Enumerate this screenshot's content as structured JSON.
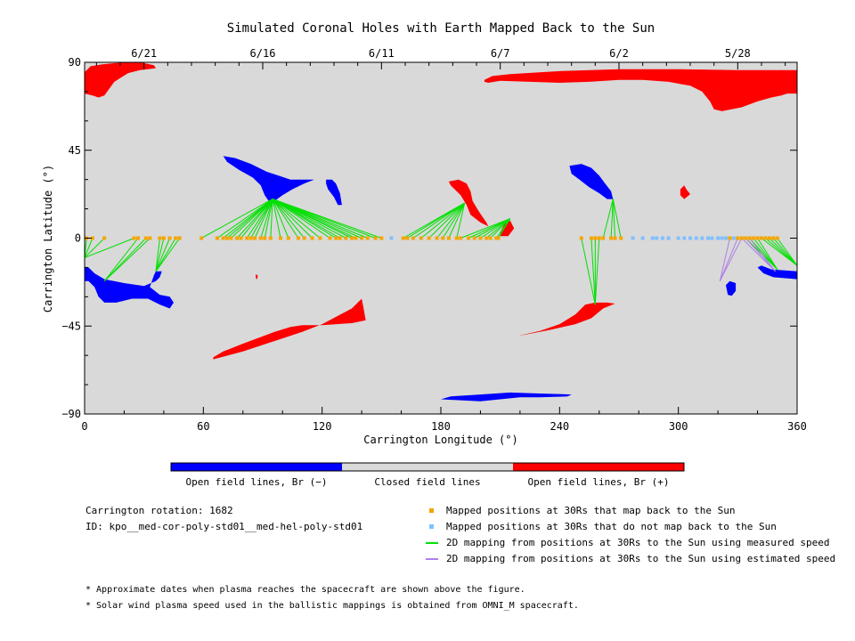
{
  "chart_data": {
    "type": "scatter",
    "title": "Simulated Coronal Holes with Earth Mapped Back to the Sun",
    "xlabel": "Carrington Longitude (°)",
    "ylabel": "Carrington Latitude (°)",
    "xlim": [
      0,
      360
    ],
    "ylim": [
      -90,
      90
    ],
    "x_ticks": [
      "0",
      "60",
      "120",
      "180",
      "240",
      "300",
      "360"
    ],
    "y_ticks": [
      "90",
      "45",
      "0",
      "−45",
      "−90"
    ],
    "top_axis": {
      "labels": [
        {
          "date": "6/21",
          "lon": 30
        },
        {
          "date": "6/16",
          "lon": 90
        },
        {
          "date": "6/11",
          "lon": 150
        },
        {
          "date": "6/7",
          "lon": 210
        },
        {
          "date": "6/2",
          "lon": 270
        },
        {
          "date": "5/28",
          "lon": 330
        }
      ]
    },
    "colors": {
      "closed": "#d9d9d9",
      "open_negative": "#0000ff",
      "open_positive": "#ff0000",
      "mapped": "#f5a500",
      "not_mapped": "#80c0ff",
      "measured_line": "#00e000",
      "estimated_line": "#b080e8"
    },
    "regions": [
      {
        "polarity": "positive",
        "points": [
          [
            0,
            85
          ],
          [
            3,
            88
          ],
          [
            9,
            89
          ],
          [
            20,
            90
          ],
          [
            28,
            90
          ],
          [
            35,
            88.5
          ],
          [
            36,
            87
          ],
          [
            28,
            86
          ],
          [
            22,
            84.5
          ],
          [
            15,
            80
          ],
          [
            10,
            73
          ],
          [
            7,
            72
          ],
          [
            4,
            73
          ],
          [
            0,
            74
          ]
        ]
      },
      {
        "polarity": "positive",
        "points": [
          [
            202,
            81
          ],
          [
            206,
            83
          ],
          [
            215,
            84
          ],
          [
            240,
            85.5
          ],
          [
            270,
            86.5
          ],
          [
            300,
            86.5
          ],
          [
            330,
            86
          ],
          [
            355,
            86
          ],
          [
            360,
            86
          ],
          [
            360,
            74
          ],
          [
            355,
            74
          ],
          [
            352,
            73
          ],
          [
            347,
            72
          ],
          [
            340,
            70
          ],
          [
            332,
            67
          ],
          [
            322,
            65
          ],
          [
            318,
            66
          ],
          [
            316,
            70
          ],
          [
            312,
            75
          ],
          [
            306,
            78
          ],
          [
            295,
            80
          ],
          [
            282,
            81
          ],
          [
            270,
            81
          ],
          [
            255,
            80
          ],
          [
            240,
            79.5
          ],
          [
            225,
            80
          ],
          [
            210,
            80.5
          ],
          [
            204,
            79.5
          ],
          [
            202,
            80
          ]
        ]
      },
      {
        "polarity": "positive",
        "points": [
          [
            65,
            -62
          ],
          [
            80,
            -58
          ],
          [
            95,
            -53
          ],
          [
            110,
            -48
          ],
          [
            120,
            -44
          ],
          [
            135,
            -36
          ],
          [
            140,
            -31
          ],
          [
            141,
            -36
          ],
          [
            142,
            -42
          ],
          [
            135,
            -43.5
          ],
          [
            120,
            -44.5
          ],
          [
            110,
            -44.5
          ],
          [
            104,
            -45.5
          ],
          [
            96,
            -48
          ],
          [
            88,
            -51
          ],
          [
            80,
            -54
          ],
          [
            70,
            -58
          ],
          [
            65,
            -61
          ]
        ]
      },
      {
        "polarity": "positive",
        "points": [
          [
            219,
            -50
          ],
          [
            230,
            -47.5
          ],
          [
            240,
            -44
          ],
          [
            248,
            -39
          ],
          [
            253,
            -34
          ],
          [
            258,
            -33
          ],
          [
            264,
            -33
          ],
          [
            268,
            -33.5
          ],
          [
            262,
            -36
          ],
          [
            256,
            -41
          ],
          [
            248,
            -44
          ],
          [
            235,
            -47
          ],
          [
            222,
            -49.5
          ]
        ]
      },
      {
        "polarity": "positive",
        "points": [
          [
            184,
            29
          ],
          [
            189,
            30
          ],
          [
            193,
            28
          ],
          [
            195,
            24
          ],
          [
            196,
            19
          ],
          [
            199,
            14
          ],
          [
            203,
            8
          ],
          [
            204,
            6
          ],
          [
            200,
            8
          ],
          [
            195,
            12
          ],
          [
            193,
            17
          ],
          [
            190,
            22
          ],
          [
            185,
            27
          ]
        ]
      },
      {
        "polarity": "positive",
        "points": [
          [
            301,
            25
          ],
          [
            303,
            27
          ],
          [
            304,
            25
          ],
          [
            306,
            22.5
          ],
          [
            303,
            20
          ],
          [
            301,
            22
          ]
        ]
      },
      {
        "polarity": "positive",
        "points": [
          [
            210,
            3
          ],
          [
            212,
            7
          ],
          [
            215,
            9
          ],
          [
            217,
            5
          ],
          [
            214,
            1
          ],
          [
            210,
            1
          ]
        ]
      },
      {
        "polarity": "positive",
        "points": [
          [
            86.5,
            -18.5
          ],
          [
            87.5,
            -19
          ],
          [
            87.2,
            -21
          ],
          [
            86.5,
            -20.5
          ]
        ]
      },
      {
        "polarity": "negative",
        "points": [
          [
            70,
            42
          ],
          [
            76,
            41
          ],
          [
            84,
            38
          ],
          [
            92,
            34
          ],
          [
            98,
            32
          ],
          [
            104,
            30
          ],
          [
            111,
            30
          ],
          [
            116,
            30
          ],
          [
            111,
            28
          ],
          [
            105,
            25
          ],
          [
            100,
            22
          ],
          [
            96,
            19
          ],
          [
            93,
            19
          ],
          [
            91,
            22
          ],
          [
            89,
            27
          ],
          [
            85,
            31
          ],
          [
            78,
            35
          ],
          [
            72,
            39
          ]
        ]
      },
      {
        "polarity": "negative",
        "points": [
          [
            122,
            30
          ],
          [
            125,
            30
          ],
          [
            127,
            28
          ],
          [
            129,
            23
          ],
          [
            130,
            17
          ],
          [
            128,
            17
          ],
          [
            126,
            21
          ],
          [
            123,
            25
          ],
          [
            122,
            28
          ]
        ]
      },
      {
        "polarity": "negative",
        "points": [
          [
            245,
            37
          ],
          [
            251,
            38
          ],
          [
            256,
            36
          ],
          [
            260,
            32
          ],
          [
            263,
            28
          ],
          [
            266,
            24
          ],
          [
            267,
            20
          ],
          [
            264,
            20
          ],
          [
            260,
            23
          ],
          [
            255,
            26
          ],
          [
            250,
            30
          ],
          [
            246,
            33
          ]
        ]
      },
      {
        "polarity": "negative",
        "points": [
          [
            0,
            -15
          ],
          [
            2,
            -15
          ],
          [
            5,
            -18
          ],
          [
            10,
            -21
          ],
          [
            20,
            -23
          ],
          [
            30,
            -24.5
          ],
          [
            36,
            -22
          ],
          [
            38,
            -20
          ],
          [
            39,
            -17
          ],
          [
            36,
            -17
          ],
          [
            35,
            -19
          ],
          [
            33,
            -25
          ],
          [
            38,
            -29
          ],
          [
            43,
            -30
          ],
          [
            45,
            -33
          ],
          [
            43,
            -36
          ],
          [
            38,
            -34
          ],
          [
            32,
            -31
          ],
          [
            24,
            -31
          ],
          [
            16,
            -33
          ],
          [
            10,
            -33
          ],
          [
            7,
            -30
          ],
          [
            5,
            -25
          ],
          [
            2,
            -22
          ],
          [
            0,
            -22
          ]
        ]
      },
      {
        "polarity": "negative",
        "points": [
          [
            326,
            -22
          ],
          [
            329,
            -23
          ],
          [
            329,
            -27
          ],
          [
            327,
            -29.5
          ],
          [
            325,
            -29
          ],
          [
            324,
            -24
          ]
        ]
      },
      {
        "polarity": "negative",
        "points": [
          [
            340,
            -15
          ],
          [
            343,
            -18
          ],
          [
            348,
            -20
          ],
          [
            354,
            -20.5
          ],
          [
            360,
            -21
          ],
          [
            360,
            -17
          ],
          [
            354,
            -16.5
          ],
          [
            347,
            -16
          ],
          [
            342,
            -14
          ]
        ]
      },
      {
        "polarity": "negative",
        "points": [
          [
            180,
            -82.5
          ],
          [
            190,
            -83
          ],
          [
            200,
            -83.5
          ],
          [
            210,
            -82.5
          ],
          [
            220,
            -81.5
          ],
          [
            230,
            -81.5
          ],
          [
            244,
            -81
          ],
          [
            246,
            -80
          ],
          [
            230,
            -79.5
          ],
          [
            215,
            -79
          ],
          [
            200,
            -80
          ],
          [
            185,
            -81
          ]
        ]
      }
    ],
    "mapped_points": [
      1,
      4,
      10,
      25,
      27,
      31,
      33,
      38,
      40,
      43,
      46,
      48,
      59,
      67,
      70,
      72,
      74,
      77,
      79,
      82,
      84,
      86,
      89,
      91,
      94,
      99,
      103,
      108,
      111,
      115,
      119,
      124,
      127,
      129,
      132,
      135,
      137,
      140,
      143,
      147,
      150,
      161,
      163,
      166,
      170,
      174,
      178,
      181,
      184,
      188,
      190,
      194,
      197,
      200,
      203,
      205,
      208,
      209,
      251,
      256,
      258,
      260,
      262,
      266,
      268,
      271,
      326,
      330,
      332,
      334,
      336,
      338,
      340,
      342,
      344,
      346,
      348,
      350
    ],
    "not_mapped_points": [
      155,
      277,
      282,
      287,
      289,
      292,
      295,
      300,
      303,
      306,
      309,
      312,
      315,
      317,
      320,
      322,
      324,
      328
    ],
    "measured_mappings": [
      {
        "target": [
          0,
          -10
        ],
        "from": [
          1,
          4,
          10,
          25
        ]
      },
      {
        "target": [
          10,
          -22
        ],
        "from": [
          27,
          31,
          33
        ]
      },
      {
        "target": [
          36,
          -17
        ],
        "from": [
          38,
          40,
          43,
          46,
          48
        ]
      },
      {
        "target": [
          95,
          20
        ],
        "from": [
          59,
          67,
          70,
          72,
          74,
          77,
          79,
          82,
          84,
          86,
          89,
          91,
          94,
          99,
          103,
          108,
          111,
          115,
          119,
          124,
          127,
          129,
          132,
          135,
          137,
          140,
          143,
          147,
          150
        ]
      },
      {
        "target": [
          192,
          18
        ],
        "from": [
          161,
          163,
          166,
          170,
          174,
          178,
          181,
          184,
          188
        ]
      },
      {
        "target": [
          215,
          10
        ],
        "from": [
          190,
          194,
          197,
          200,
          203,
          205,
          208,
          209
        ]
      },
      {
        "target": [
          258,
          -34
        ],
        "from": [
          251,
          256,
          258,
          260
        ]
      },
      {
        "target": [
          267,
          20
        ],
        "from": [
          262,
          266,
          268,
          271
        ]
      },
      {
        "target": [
          350,
          -16
        ],
        "from": [
          334,
          336,
          338,
          340
        ]
      },
      {
        "target": [
          360,
          -14
        ],
        "from": [
          342,
          344,
          346,
          348,
          350
        ]
      }
    ],
    "estimated_mappings": [
      {
        "target": [
          321,
          -22
        ],
        "from": [
          326,
          330,
          332
        ]
      },
      {
        "target": [
          349,
          -17
        ],
        "from": [
          332,
          334,
          336
        ]
      }
    ]
  },
  "colorbar": {
    "labels": [
      "Open field lines, Br (−)",
      "Closed field lines",
      "Open field lines, Br (+)"
    ]
  },
  "info": {
    "rotation": "Carrington rotation: 1682",
    "id": "ID: kpo__med-cor-poly-std01__med-hel-poly-std01"
  },
  "legend": [
    {
      "label": "Mapped positions at 30Rs that map back to the Sun",
      "kind": "square",
      "color": "#f5a500"
    },
    {
      "label": "Mapped positions at 30Rs that do not map back to the Sun",
      "kind": "square",
      "color": "#80c0ff"
    },
    {
      "label": "2D mapping from positions at 30Rs to the Sun using measured speed",
      "kind": "line",
      "color": "#00e000"
    },
    {
      "label": "2D mapping from positions at 30Rs to the Sun using estimated speed",
      "kind": "line",
      "color": "#b080e8"
    }
  ],
  "notes": [
    "* Approximate dates when plasma reaches the spacecraft are shown above the figure.",
    "* Solar wind plasma speed used in the ballistic mappings is obtained from OMNI_M spacecraft."
  ]
}
